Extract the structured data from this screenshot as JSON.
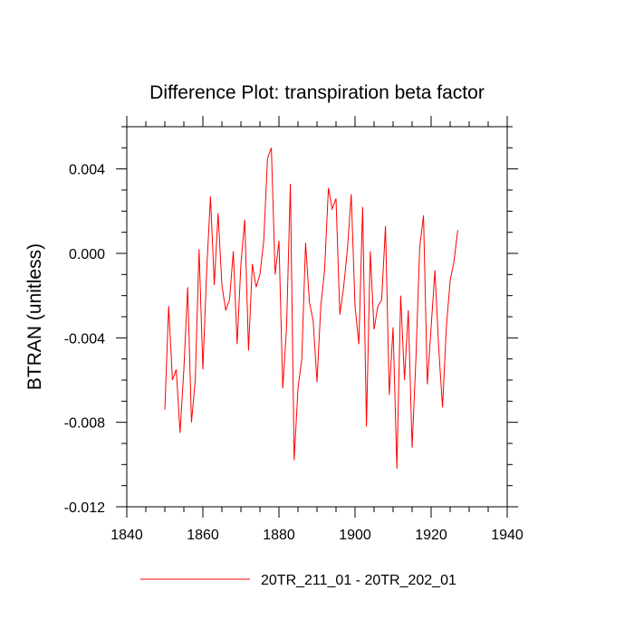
{
  "chart_data": {
    "type": "line",
    "title": "Difference Plot: transpiration beta factor",
    "xlabel": "",
    "ylabel": "BTRAN  (unitless)",
    "xlim": [
      1840,
      1940
    ],
    "ylim": [
      -0.012,
      0.006
    ],
    "x_ticks": [
      1840,
      1860,
      1880,
      1900,
      1920,
      1940
    ],
    "x_tick_labels": [
      "1840",
      "1860",
      "1880",
      "1900",
      "1920",
      "1940"
    ],
    "y_ticks": [
      -0.012,
      -0.008,
      -0.004,
      0.0,
      0.004
    ],
    "y_tick_labels": [
      "-0.012",
      "-0.008",
      "-0.004",
      "0.000",
      "0.004"
    ],
    "grid": false,
    "legend_position": "bottom",
    "series": [
      {
        "name": "20TR_211_01 - 20TR_202_01",
        "color": "#ff0000",
        "x": [
          1850,
          1851,
          1852,
          1853,
          1854,
          1855,
          1856,
          1857,
          1858,
          1859,
          1860,
          1861,
          1862,
          1863,
          1864,
          1865,
          1866,
          1867,
          1868,
          1869,
          1870,
          1871,
          1872,
          1873,
          1874,
          1875,
          1876,
          1877,
          1878,
          1879,
          1880,
          1881,
          1882,
          1883,
          1884,
          1885,
          1886,
          1887,
          1888,
          1889,
          1890,
          1891,
          1892,
          1893,
          1894,
          1895,
          1896,
          1897,
          1898,
          1899,
          1900,
          1901,
          1902,
          1903,
          1904,
          1905,
          1906,
          1907,
          1908,
          1909,
          1910,
          1911,
          1912,
          1913,
          1914,
          1915,
          1916,
          1917,
          1918,
          1919,
          1920,
          1921,
          1922,
          1923,
          1924,
          1925,
          1926,
          1927
        ],
        "values": [
          -0.0074,
          -0.0025,
          -0.006,
          -0.0055,
          -0.0085,
          -0.0055,
          -0.0016,
          -0.008,
          -0.006,
          0.0002,
          -0.0055,
          -0.0008,
          0.0027,
          -0.0015,
          0.0019,
          -0.0015,
          -0.0027,
          -0.0022,
          0.0001,
          -0.0043,
          -0.0005,
          0.0016,
          -0.0046,
          -0.0005,
          -0.0016,
          -0.001,
          0.0006,
          0.0045,
          0.005,
          -0.001,
          0.0006,
          -0.0064,
          -0.0035,
          0.0033,
          -0.0098,
          -0.0064,
          -0.005,
          0.0005,
          -0.0023,
          -0.0032,
          -0.0061,
          -0.0025,
          -0.0008,
          0.0031,
          0.0021,
          0.0026,
          -0.0029,
          -0.0016,
          0.0002,
          0.0028,
          -0.0025,
          -0.0043,
          0.0022,
          -0.0082,
          0.0001,
          -0.0036,
          -0.0025,
          -0.0022,
          0.0013,
          -0.0067,
          -0.0035,
          -0.0102,
          -0.002,
          -0.006,
          -0.0027,
          -0.0092,
          -0.005,
          0.0003,
          0.0018,
          -0.0062,
          -0.0035,
          -0.0008,
          -0.0045,
          -0.0073,
          -0.0035,
          -0.0013,
          -0.0004,
          0.0011
        ]
      }
    ]
  }
}
